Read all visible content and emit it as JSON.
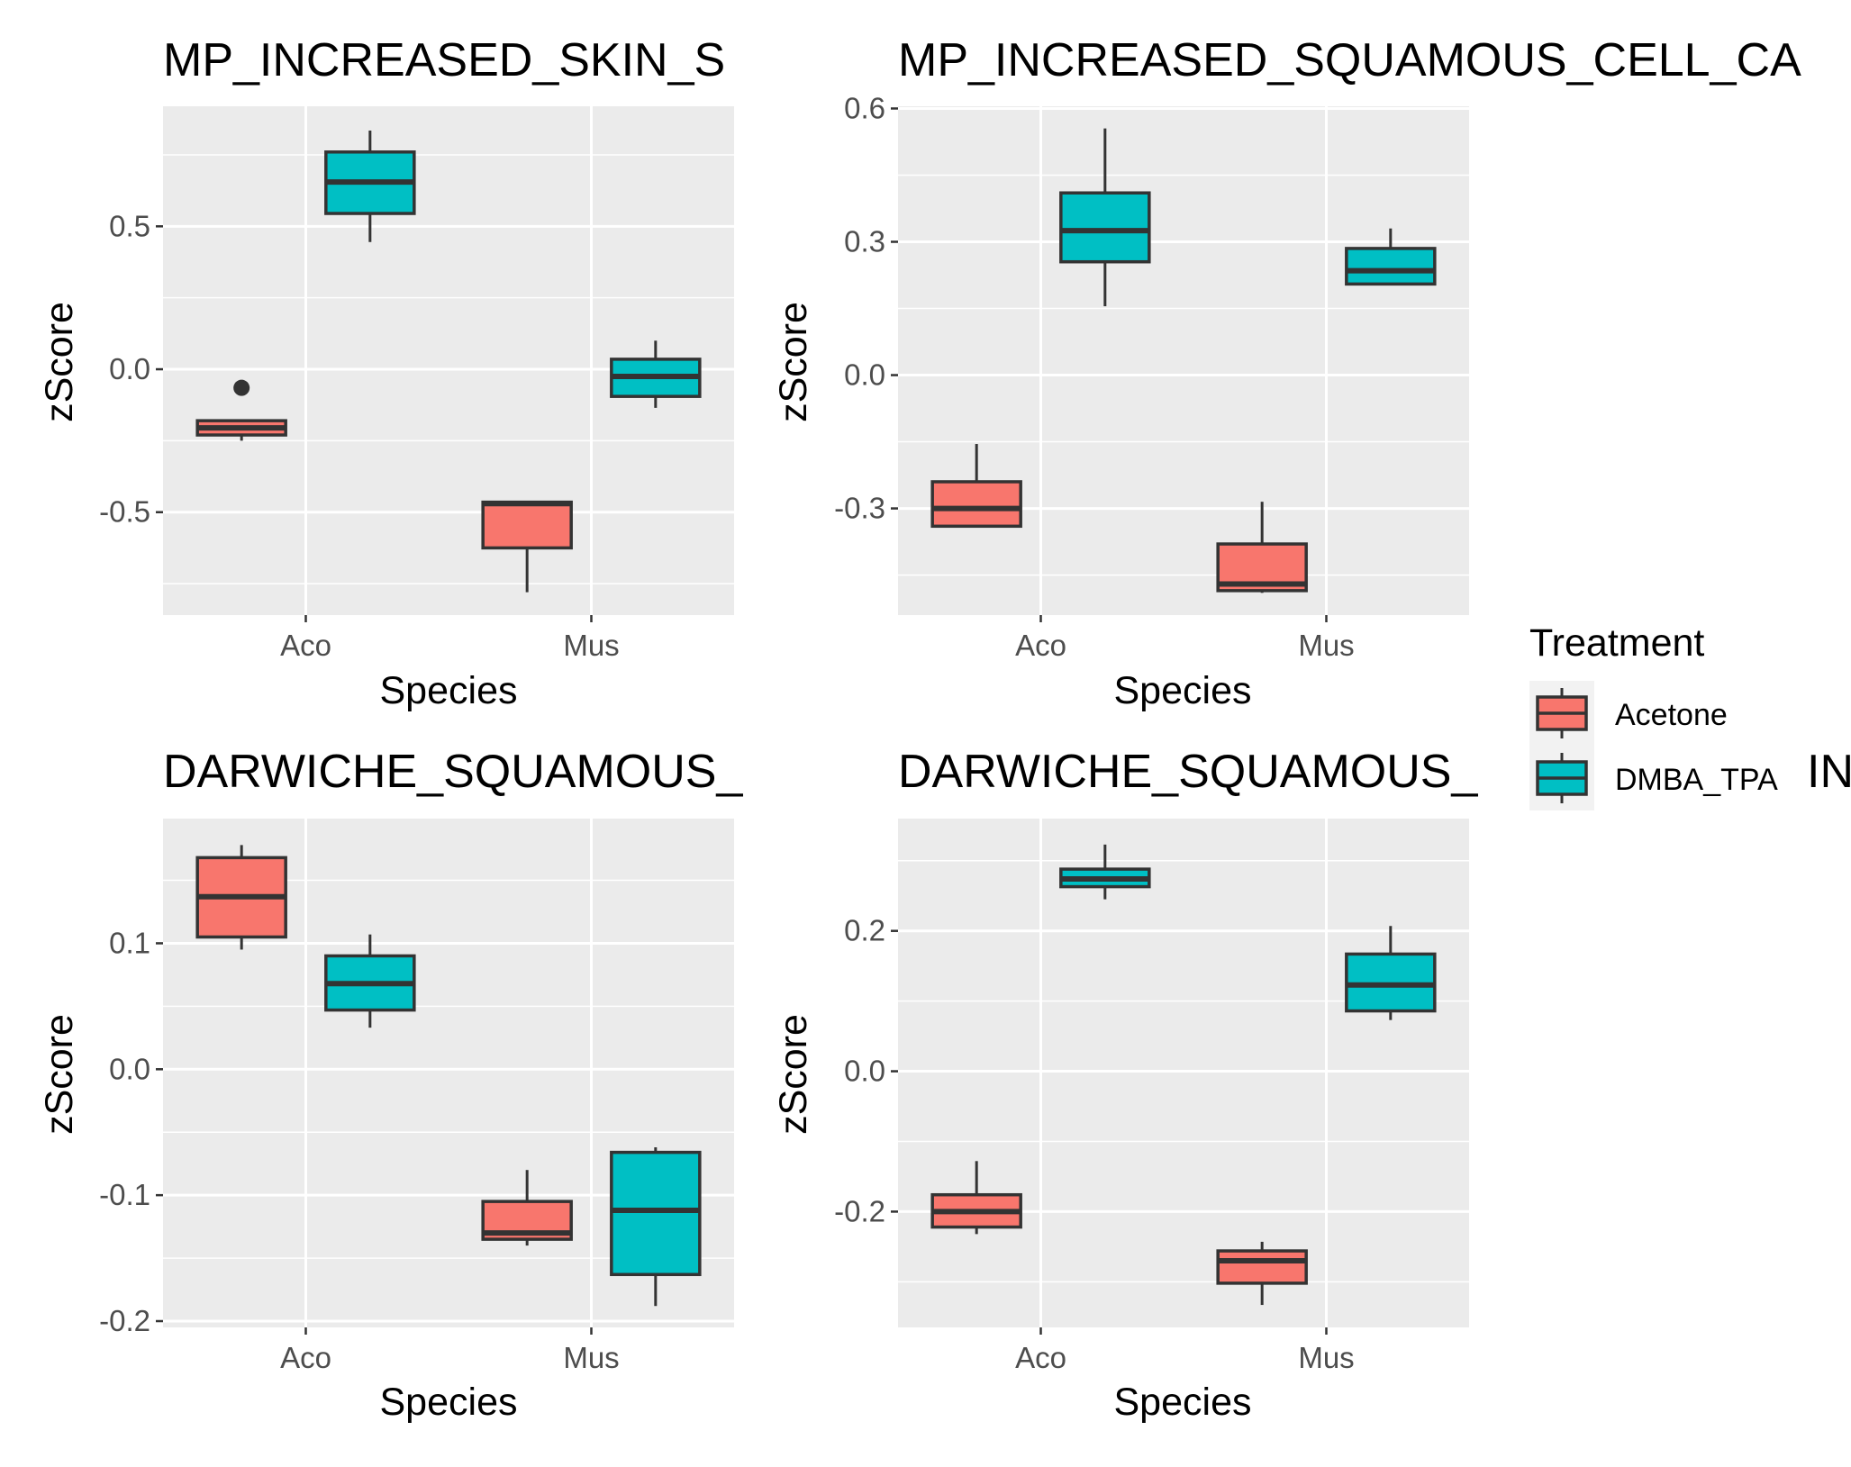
{
  "legend": {
    "title": "Treatment",
    "entries": [
      {
        "label": "Acetone",
        "color": "#F8766D"
      },
      {
        "label": "DMBA_TPA",
        "color": "#00BFC4"
      }
    ],
    "overflow_text": "IN"
  },
  "colors": {
    "panel_bg": "#EBEBEB",
    "grid": "#FFFFFF",
    "box_outline": "#333333",
    "tick_text": "#4D4D4D"
  },
  "chart_data": [
    {
      "type": "box",
      "title": "MP_INCREASED_SKIN_S",
      "xlabel": "Species",
      "ylabel": "zScore",
      "categories": [
        "Aco",
        "Mus"
      ],
      "ylim": [
        -0.86,
        0.92
      ],
      "yticks": [
        -0.5,
        0.0,
        0.5
      ],
      "ytick_labels": [
        "-0.5",
        "0.0",
        "0.5"
      ],
      "series": [
        {
          "name": "Acetone",
          "boxes": [
            {
              "category": "Aco",
              "whisker_low": -0.25,
              "q1": -0.23,
              "median": -0.205,
              "q3": -0.18,
              "whisker_high": -0.18,
              "outliers": [
                -0.065
              ]
            },
            {
              "category": "Mus",
              "whisker_low": -0.78,
              "q1": -0.625,
              "median": -0.47,
              "q3": -0.465,
              "whisker_high": -0.465,
              "outliers": []
            }
          ]
        },
        {
          "name": "DMBA_TPA",
          "boxes": [
            {
              "category": "Aco",
              "whisker_low": 0.445,
              "q1": 0.545,
              "median": 0.655,
              "q3": 0.76,
              "whisker_high": 0.835,
              "outliers": []
            },
            {
              "category": "Mus",
              "whisker_low": -0.135,
              "q1": -0.095,
              "median": -0.025,
              "q3": 0.035,
              "whisker_high": 0.1,
              "outliers": []
            }
          ]
        }
      ]
    },
    {
      "type": "box",
      "title": "MP_INCREASED_SQUAMOUS_CELL_CA",
      "xlabel": "Species",
      "ylabel": "zScore",
      "categories": [
        "Aco",
        "Mus"
      ],
      "ylim": [
        -0.54,
        0.605
      ],
      "yticks": [
        -0.3,
        0.0,
        0.3,
        0.6
      ],
      "ytick_labels": [
        "-0.3",
        "0.0",
        "0.3",
        "0.6"
      ],
      "series": [
        {
          "name": "Acetone",
          "boxes": [
            {
              "category": "Aco",
              "whisker_low": -0.34,
              "q1": -0.34,
              "median": -0.3,
              "q3": -0.24,
              "whisker_high": -0.155,
              "outliers": []
            },
            {
              "category": "Mus",
              "whisker_low": -0.49,
              "q1": -0.485,
              "median": -0.47,
              "q3": -0.38,
              "whisker_high": -0.285,
              "outliers": []
            }
          ]
        },
        {
          "name": "DMBA_TPA",
          "boxes": [
            {
              "category": "Aco",
              "whisker_low": 0.155,
              "q1": 0.255,
              "median": 0.325,
              "q3": 0.41,
              "whisker_high": 0.555,
              "outliers": []
            },
            {
              "category": "Mus",
              "whisker_low": 0.205,
              "q1": 0.205,
              "median": 0.235,
              "q3": 0.285,
              "whisker_high": 0.33,
              "outliers": []
            }
          ]
        }
      ]
    },
    {
      "type": "box",
      "title": "DARWICHE_SQUAMOUS_",
      "xlabel": "Species",
      "ylabel": "zScore",
      "categories": [
        "Aco",
        "Mus"
      ],
      "ylim": [
        -0.205,
        0.199
      ],
      "yticks": [
        -0.2,
        -0.1,
        0.0,
        0.1
      ],
      "ytick_labels": [
        "-0.2",
        "-0.1",
        "0.0",
        "0.1"
      ],
      "series": [
        {
          "name": "Acetone",
          "boxes": [
            {
              "category": "Aco",
              "whisker_low": 0.095,
              "q1": 0.105,
              "median": 0.137,
              "q3": 0.168,
              "whisker_high": 0.178,
              "outliers": []
            },
            {
              "category": "Mus",
              "whisker_low": -0.14,
              "q1": -0.135,
              "median": -0.13,
              "q3": -0.105,
              "whisker_high": -0.08,
              "outliers": []
            }
          ]
        },
        {
          "name": "DMBA_TPA",
          "boxes": [
            {
              "category": "Aco",
              "whisker_low": 0.033,
              "q1": 0.047,
              "median": 0.068,
              "q3": 0.09,
              "whisker_high": 0.107,
              "outliers": []
            },
            {
              "category": "Mus",
              "whisker_low": -0.188,
              "q1": -0.163,
              "median": -0.112,
              "q3": -0.066,
              "whisker_high": -0.062,
              "outliers": []
            }
          ]
        }
      ]
    },
    {
      "type": "box",
      "title": "DARWICHE_SQUAMOUS_",
      "xlabel": "Species",
      "ylabel": "zScore",
      "categories": [
        "Aco",
        "Mus"
      ],
      "ylim": [
        -0.365,
        0.36
      ],
      "yticks": [
        -0.2,
        0.0,
        0.2
      ],
      "ytick_labels": [
        "-0.2",
        "0.0",
        "0.2"
      ],
      "series": [
        {
          "name": "Acetone",
          "boxes": [
            {
              "category": "Aco",
              "whisker_low": -0.232,
              "q1": -0.222,
              "median": -0.2,
              "q3": -0.176,
              "whisker_high": -0.128,
              "outliers": []
            },
            {
              "category": "Mus",
              "whisker_low": -0.333,
              "q1": -0.302,
              "median": -0.27,
              "q3": -0.256,
              "whisker_high": -0.243,
              "outliers": []
            }
          ]
        },
        {
          "name": "DMBA_TPA",
          "boxes": [
            {
              "category": "Aco",
              "whisker_low": 0.245,
              "q1": 0.263,
              "median": 0.274,
              "q3": 0.288,
              "whisker_high": 0.323,
              "outliers": []
            },
            {
              "category": "Mus",
              "whisker_low": 0.073,
              "q1": 0.086,
              "median": 0.123,
              "q3": 0.167,
              "whisker_high": 0.207,
              "outliers": []
            }
          ]
        }
      ]
    }
  ]
}
